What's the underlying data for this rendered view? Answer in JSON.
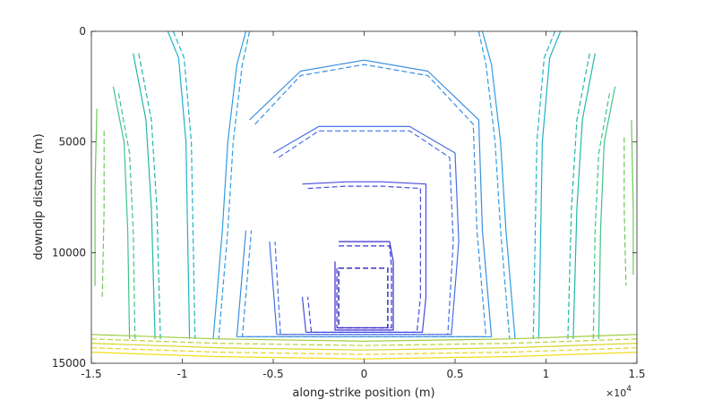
{
  "chart_data": {
    "type": "line",
    "subtype": "contour",
    "xlabel": "along-strike position (m)",
    "ylabel": "downdip distance (m)",
    "x_exponent_label": "×10",
    "x_exponent_power": "4",
    "xlim": [
      -15000,
      15000
    ],
    "ylim": [
      0,
      15000
    ],
    "y_reversed": true,
    "grid": false,
    "x_ticks": [
      -15000,
      -10000,
      -5000,
      0,
      5000,
      10000,
      15000
    ],
    "x_tick_labels": [
      "-1.5",
      "-1",
      "-0.5",
      "0",
      "0.5",
      "1",
      "1.5"
    ],
    "y_ticks": [
      0,
      5000,
      10000,
      15000
    ],
    "y_tick_labels": [
      "0",
      "5000",
      "10000",
      "15000"
    ],
    "nucleation_patch": {
      "x": [
        -1400,
        1300
      ],
      "y": [
        10700,
        13400
      ]
    },
    "contours": [
      {
        "style": "solid",
        "color": "#3a2fd6",
        "points": [
          [
            -1400,
            9500
          ],
          [
            1400,
            9500
          ],
          [
            1600,
            10400
          ],
          [
            1600,
            13500
          ],
          [
            -1600,
            13500
          ],
          [
            -1600,
            10400
          ]
        ]
      },
      {
        "style": "dashed",
        "color": "#3a2fd6",
        "points": [
          [
            -1400,
            9700
          ],
          [
            1400,
            9700
          ],
          [
            1500,
            10600
          ],
          [
            1500,
            13400
          ],
          [
            -1500,
            13400
          ],
          [
            -1500,
            10600
          ]
        ]
      },
      {
        "style": "solid",
        "color": "#4a4be0",
        "points": [
          [
            -3400,
            6900
          ],
          [
            -1000,
            6800
          ],
          [
            1000,
            6800
          ],
          [
            3400,
            6900
          ],
          [
            3400,
            12000
          ],
          [
            3200,
            13600
          ],
          [
            -3200,
            13600
          ],
          [
            -3400,
            12000
          ]
        ]
      },
      {
        "style": "dashed",
        "color": "#4a4be0",
        "points": [
          [
            -3100,
            7100
          ],
          [
            -1000,
            7000
          ],
          [
            1000,
            7000
          ],
          [
            3100,
            7100
          ],
          [
            3100,
            12000
          ],
          [
            2900,
            13600
          ],
          [
            -2900,
            13600
          ],
          [
            -3100,
            12000
          ]
        ]
      },
      {
        "style": "solid",
        "color": "#4570e6",
        "points": [
          [
            -5000,
            5500
          ],
          [
            -2500,
            4300
          ],
          [
            2500,
            4300
          ],
          [
            5000,
            5500
          ],
          [
            5200,
            9500
          ],
          [
            4800,
            13700
          ],
          [
            -4800,
            13700
          ],
          [
            -5200,
            9500
          ]
        ]
      },
      {
        "style": "dashed",
        "color": "#4570e6",
        "points": [
          [
            -4700,
            5700
          ],
          [
            -2500,
            4500
          ],
          [
            2500,
            4500
          ],
          [
            4700,
            5700
          ],
          [
            4900,
            9500
          ],
          [
            4600,
            13700
          ],
          [
            -4600,
            13700
          ],
          [
            -4900,
            9500
          ]
        ]
      },
      {
        "style": "solid",
        "color": "#3a8fe0",
        "points": [
          [
            -6300,
            4000
          ],
          [
            -3500,
            1800
          ],
          [
            0,
            1300
          ],
          [
            3500,
            1800
          ],
          [
            6300,
            4000
          ],
          [
            6500,
            9000
          ],
          [
            7000,
            13800
          ],
          [
            -7000,
            13800
          ],
          [
            -6500,
            9000
          ]
        ]
      },
      {
        "style": "dashed",
        "color": "#3a8fe0",
        "points": [
          [
            -6000,
            4200
          ],
          [
            -3500,
            2000
          ],
          [
            0,
            1500
          ],
          [
            3500,
            2000
          ],
          [
            6000,
            4200
          ],
          [
            6200,
            9000
          ],
          [
            6700,
            13800
          ],
          [
            -6700,
            13800
          ],
          [
            -6200,
            9000
          ]
        ]
      },
      {
        "style": "solid",
        "color": "#2e9ee0",
        "points": [
          [
            -6500,
            0
          ],
          [
            -7000,
            1500
          ],
          [
            -7500,
            5000
          ],
          [
            -7800,
            9000
          ],
          [
            -8300,
            13900
          ]
        ]
      },
      {
        "style": "dashed",
        "color": "#2e9ee0",
        "points": [
          [
            -6300,
            0
          ],
          [
            -6700,
            1500
          ],
          [
            -7200,
            5000
          ],
          [
            -7500,
            9000
          ],
          [
            -8000,
            13900
          ]
        ]
      },
      {
        "style": "solid",
        "color": "#2e9ee0",
        "points": [
          [
            6500,
            0
          ],
          [
            7000,
            1500
          ],
          [
            7500,
            5000
          ],
          [
            7800,
            9000
          ],
          [
            8300,
            13900
          ]
        ]
      },
      {
        "style": "dashed",
        "color": "#2e9ee0",
        "points": [
          [
            6300,
            0
          ],
          [
            6700,
            1500
          ],
          [
            7200,
            5000
          ],
          [
            7500,
            9000
          ],
          [
            8000,
            13900
          ]
        ]
      },
      {
        "style": "solid",
        "color": "#1fb3c8",
        "points": [
          [
            -10800,
            0
          ],
          [
            -10200,
            1200
          ],
          [
            -9800,
            5000
          ],
          [
            -9700,
            9500
          ],
          [
            -9600,
            13900
          ]
        ]
      },
      {
        "style": "dashed",
        "color": "#1fb3c8",
        "points": [
          [
            -10500,
            0
          ],
          [
            -9900,
            1200
          ],
          [
            -9500,
            5000
          ],
          [
            -9400,
            9500
          ],
          [
            -9300,
            13900
          ]
        ]
      },
      {
        "style": "solid",
        "color": "#1fb3c8",
        "points": [
          [
            10800,
            0
          ],
          [
            10200,
            1200
          ],
          [
            9800,
            5000
          ],
          [
            9700,
            9500
          ],
          [
            9600,
            13900
          ]
        ]
      },
      {
        "style": "dashed",
        "color": "#1fb3c8",
        "points": [
          [
            10500,
            0
          ],
          [
            9900,
            1200
          ],
          [
            9500,
            5000
          ],
          [
            9400,
            9500
          ],
          [
            9300,
            13900
          ]
        ]
      },
      {
        "style": "solid",
        "color": "#22b7a8",
        "points": [
          [
            -12700,
            1000
          ],
          [
            -12000,
            4000
          ],
          [
            -11700,
            8000
          ],
          [
            -11500,
            13900
          ]
        ]
      },
      {
        "style": "dashed",
        "color": "#22b7a8",
        "points": [
          [
            -12400,
            1000
          ],
          [
            -11700,
            4000
          ],
          [
            -11400,
            8000
          ],
          [
            -11200,
            13900
          ]
        ]
      },
      {
        "style": "solid",
        "color": "#22b7a8",
        "points": [
          [
            12700,
            1000
          ],
          [
            12000,
            4000
          ],
          [
            11700,
            8000
          ],
          [
            11500,
            13900
          ]
        ]
      },
      {
        "style": "dashed",
        "color": "#22b7a8",
        "points": [
          [
            12400,
            1000
          ],
          [
            11700,
            4000
          ],
          [
            11400,
            8000
          ],
          [
            11200,
            13900
          ]
        ]
      },
      {
        "style": "solid",
        "color": "#40c48a",
        "points": [
          [
            -13800,
            2500
          ],
          [
            -13200,
            5000
          ],
          [
            -13000,
            9000
          ],
          [
            -12900,
            13900
          ]
        ]
      },
      {
        "style": "dashed",
        "color": "#40c48a",
        "points": [
          [
            -13500,
            2800
          ],
          [
            -12900,
            5500
          ],
          [
            -12700,
            9000
          ],
          [
            -12600,
            13900
          ]
        ]
      },
      {
        "style": "solid",
        "color": "#40c48a",
        "points": [
          [
            13800,
            2500
          ],
          [
            13200,
            5000
          ],
          [
            13000,
            9000
          ],
          [
            12900,
            13900
          ]
        ]
      },
      {
        "style": "dashed",
        "color": "#40c48a",
        "points": [
          [
            13500,
            2800
          ],
          [
            12900,
            5500
          ],
          [
            12700,
            9000
          ],
          [
            12600,
            13900
          ]
        ]
      },
      {
        "style": "solid",
        "color": "#6cc85a",
        "points": [
          [
            -14700,
            3500
          ],
          [
            -14800,
            7000
          ],
          [
            -14800,
            11500
          ]
        ]
      },
      {
        "style": "dashed",
        "color": "#6cc85a",
        "points": [
          [
            -14300,
            4500
          ],
          [
            -14300,
            8000
          ],
          [
            -14400,
            12000
          ]
        ]
      },
      {
        "style": "solid",
        "color": "#6cc85a",
        "points": [
          [
            14700,
            4000
          ],
          [
            14800,
            8000
          ],
          [
            14800,
            11000
          ]
        ]
      },
      {
        "style": "dashed",
        "color": "#6cc85a",
        "points": [
          [
            14300,
            4800
          ],
          [
            14300,
            8000
          ],
          [
            14400,
            11500
          ]
        ]
      },
      {
        "style": "solid",
        "color": "#9ecb3c",
        "points": [
          [
            -15000,
            13700
          ],
          [
            -8000,
            13900
          ],
          [
            0,
            14000
          ],
          [
            8000,
            13900
          ],
          [
            15000,
            13700
          ]
        ]
      },
      {
        "style": "dashed",
        "color": "#b8d22e",
        "points": [
          [
            -15000,
            13900
          ],
          [
            -8000,
            14100
          ],
          [
            0,
            14200
          ],
          [
            8000,
            14100
          ],
          [
            15000,
            13900
          ]
        ]
      },
      {
        "style": "solid",
        "color": "#d6d41f",
        "points": [
          [
            -15000,
            14100
          ],
          [
            -8000,
            14300
          ],
          [
            0,
            14400
          ],
          [
            8000,
            14300
          ],
          [
            15000,
            14100
          ]
        ]
      },
      {
        "style": "dashed",
        "color": "#e8d419",
        "points": [
          [
            -15000,
            14300
          ],
          [
            -8000,
            14500
          ],
          [
            0,
            14600
          ],
          [
            8000,
            14500
          ],
          [
            15000,
            14300
          ]
        ]
      },
      {
        "style": "solid",
        "color": "#f4dc18",
        "points": [
          [
            -15000,
            14500
          ],
          [
            -8000,
            14700
          ],
          [
            0,
            14800
          ],
          [
            8000,
            14700
          ],
          [
            15000,
            14500
          ]
        ]
      }
    ]
  }
}
